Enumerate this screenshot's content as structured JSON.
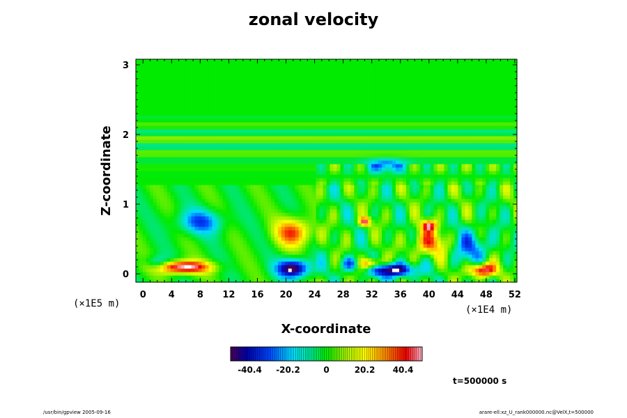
{
  "chart_data": {
    "type": "heatmap",
    "title": "zonal velocity",
    "xlabel": "X-coordinate",
    "ylabel": "Z-coordinate",
    "x_scale_label": "(×1E4 m)",
    "y_scale_label": "(×1E5 m)",
    "xlim": [
      -1,
      52.3
    ],
    "ylim": [
      -0.12,
      3.08
    ],
    "x_ticks": [
      0,
      4,
      8,
      12,
      16,
      20,
      24,
      28,
      32,
      36,
      40,
      44,
      48,
      52
    ],
    "y_ticks": [
      0,
      1,
      2,
      3
    ],
    "colorbar": {
      "range": [
        -50.5,
        50.5
      ],
      "ticks": [
        -40.4,
        -20.2,
        0,
        20.2,
        40.4
      ],
      "tick_labels": [
        "-40.4",
        "-20.2",
        "0",
        "20.2",
        "40.4"
      ]
    },
    "features": [
      {
        "x": 5.5,
        "z": 0.1,
        "sx": 3.8,
        "sz": 0.09,
        "value": 55
      },
      {
        "x": 21,
        "z": 0.08,
        "sx": 2.2,
        "sz": 0.13,
        "value": -55
      },
      {
        "x": 35,
        "z": 0.06,
        "sx": 3.0,
        "sz": 0.1,
        "value": -55
      },
      {
        "x": 47.5,
        "z": 0.06,
        "sx": 1.8,
        "sz": 0.1,
        "value": 55
      },
      {
        "x": 21,
        "z": 0.6,
        "sx": 2.4,
        "sz": 0.2,
        "value": 38
      },
      {
        "x": 8,
        "z": 0.75,
        "sx": 3.2,
        "sz": 0.17,
        "value": -28
      },
      {
        "x": 40,
        "z": 0.45,
        "sx": 2.5,
        "sz": 0.2,
        "value": 30
      },
      {
        "x": 32,
        "z": 0.15,
        "sx": 1.5,
        "sz": 0.08,
        "value": 40
      },
      {
        "x": 29,
        "z": 0.15,
        "sx": 1.2,
        "sz": 0.1,
        "value": -30
      },
      {
        "x": 34,
        "z": 1.55,
        "sx": 2.6,
        "sz": 0.09,
        "value": -30
      },
      {
        "x": 2,
        "z": 0.15,
        "sx": 1.6,
        "sz": 0.1,
        "value": -22
      },
      {
        "x": 46,
        "z": 0.4,
        "sx": 2.5,
        "sz": 0.25,
        "value": -25
      },
      {
        "x": 40,
        "z": 0.7,
        "sx": 1.0,
        "sz": 0.08,
        "value": 40
      },
      {
        "x": 31,
        "z": 0.75,
        "sx": 0.8,
        "sz": 0.06,
        "value": 45
      }
    ]
  },
  "time_label": "t=500000 s",
  "footer_left": "/usr/bin/gpview 2005-09-16",
  "footer_right": "arare-ell:xz_U_rank000000.nc@VelX,t=500000"
}
